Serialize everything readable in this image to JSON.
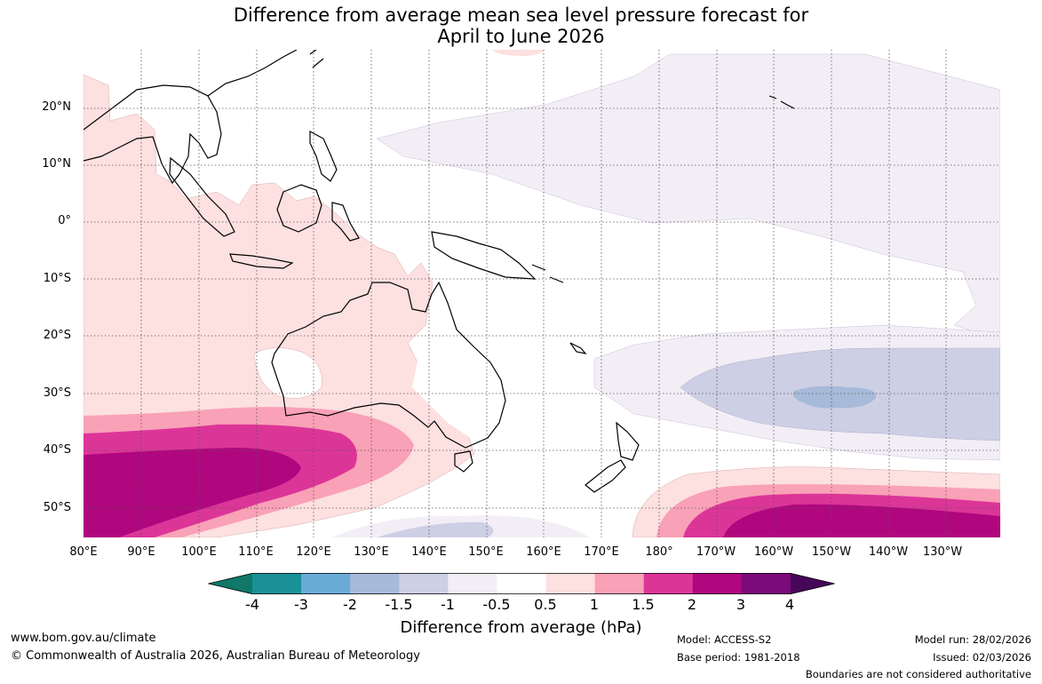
{
  "title": {
    "line1": "Difference from average mean sea level pressure forecast for",
    "line2": "April to June 2026"
  },
  "map": {
    "region": "Indo-Pacific region including Australia, Maritime Continent and Southwest Pacific",
    "lat_labels": [
      "20°N",
      "10°N",
      "0°",
      "10°S",
      "20°S",
      "30°S",
      "40°S",
      "50°S"
    ],
    "lon_labels": [
      "80°E",
      "90°E",
      "100°E",
      "110°E",
      "120°E",
      "130°E",
      "140°E",
      "150°E",
      "160°E",
      "170°E",
      "180°",
      "170°W",
      "160°W",
      "150°W",
      "140°W",
      "130°W"
    ],
    "grid": "dotted"
  },
  "colorbar": {
    "ticks": [
      "-4",
      "-3",
      "-2",
      "-1.5",
      "-1",
      "-0.5",
      "0.5",
      "1",
      "1.5",
      "2",
      "3",
      "4"
    ],
    "colors": [
      "#0f7868",
      "#1a9196",
      "#6aabd6",
      "#a7bad9",
      "#cdcfe5",
      "#f3eef6",
      "#ffffff",
      "#fde0e0",
      "#f9a1b6",
      "#dc3598",
      "#b0077f",
      "#7c0a79",
      "#470759"
    ],
    "label": "Difference from average (hPa)"
  },
  "footer": {
    "website": "www.bom.gov.au/climate",
    "copyright": "© Commonwealth of Australia 2026, Australian Bureau of Meteorology",
    "model": "Model: ACCESS-S2",
    "base_period": "Base period: 1981-2018",
    "model_run": "Model run: 28/02/2026",
    "issued": "Issued: 02/03/2026",
    "disclaimer": "Boundaries are not considered authoritative"
  }
}
